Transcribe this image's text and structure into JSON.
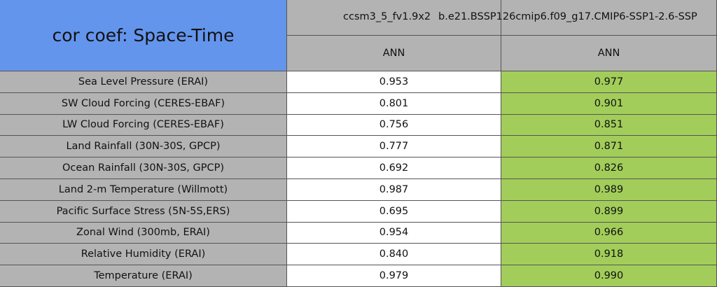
{
  "header": {
    "title": "cor coef: Space-Time",
    "columns": [
      {
        "name": "ccsm3_5_fv1.9x2",
        "period": "ANN"
      },
      {
        "name": "b.e21.BSSP126cmip6.f09_g17.CMIP6-SSP1-2.6-SSP",
        "period": "ANN"
      }
    ]
  },
  "table": {
    "rows": [
      [
        "Sea Level Pressure (ERAI)",
        "0.953",
        "0.977"
      ],
      [
        "SW Cloud Forcing (CERES-EBAF)",
        "0.801",
        "0.901"
      ],
      [
        "LW Cloud Forcing (CERES-EBAF)",
        "0.756",
        "0.851"
      ],
      [
        "Land Rainfall (30N-30S, GPCP)",
        "0.777",
        "0.871"
      ],
      [
        "Ocean Rainfall (30N-30S, GPCP)",
        "0.692",
        "0.826"
      ],
      [
        "Land 2-m Temperature (Willmott)",
        "0.987",
        "0.989"
      ],
      [
        "Pacific Surface Stress (5N-5S,ERS)",
        "0.695",
        "0.899"
      ],
      [
        "Zonal Wind (300mb, ERAI)",
        "0.954",
        "0.966"
      ],
      [
        "Relative Humidity (ERAI)",
        "0.840",
        "0.918"
      ],
      [
        "Temperature (ERAI)",
        "0.979",
        "0.990"
      ]
    ]
  }
}
